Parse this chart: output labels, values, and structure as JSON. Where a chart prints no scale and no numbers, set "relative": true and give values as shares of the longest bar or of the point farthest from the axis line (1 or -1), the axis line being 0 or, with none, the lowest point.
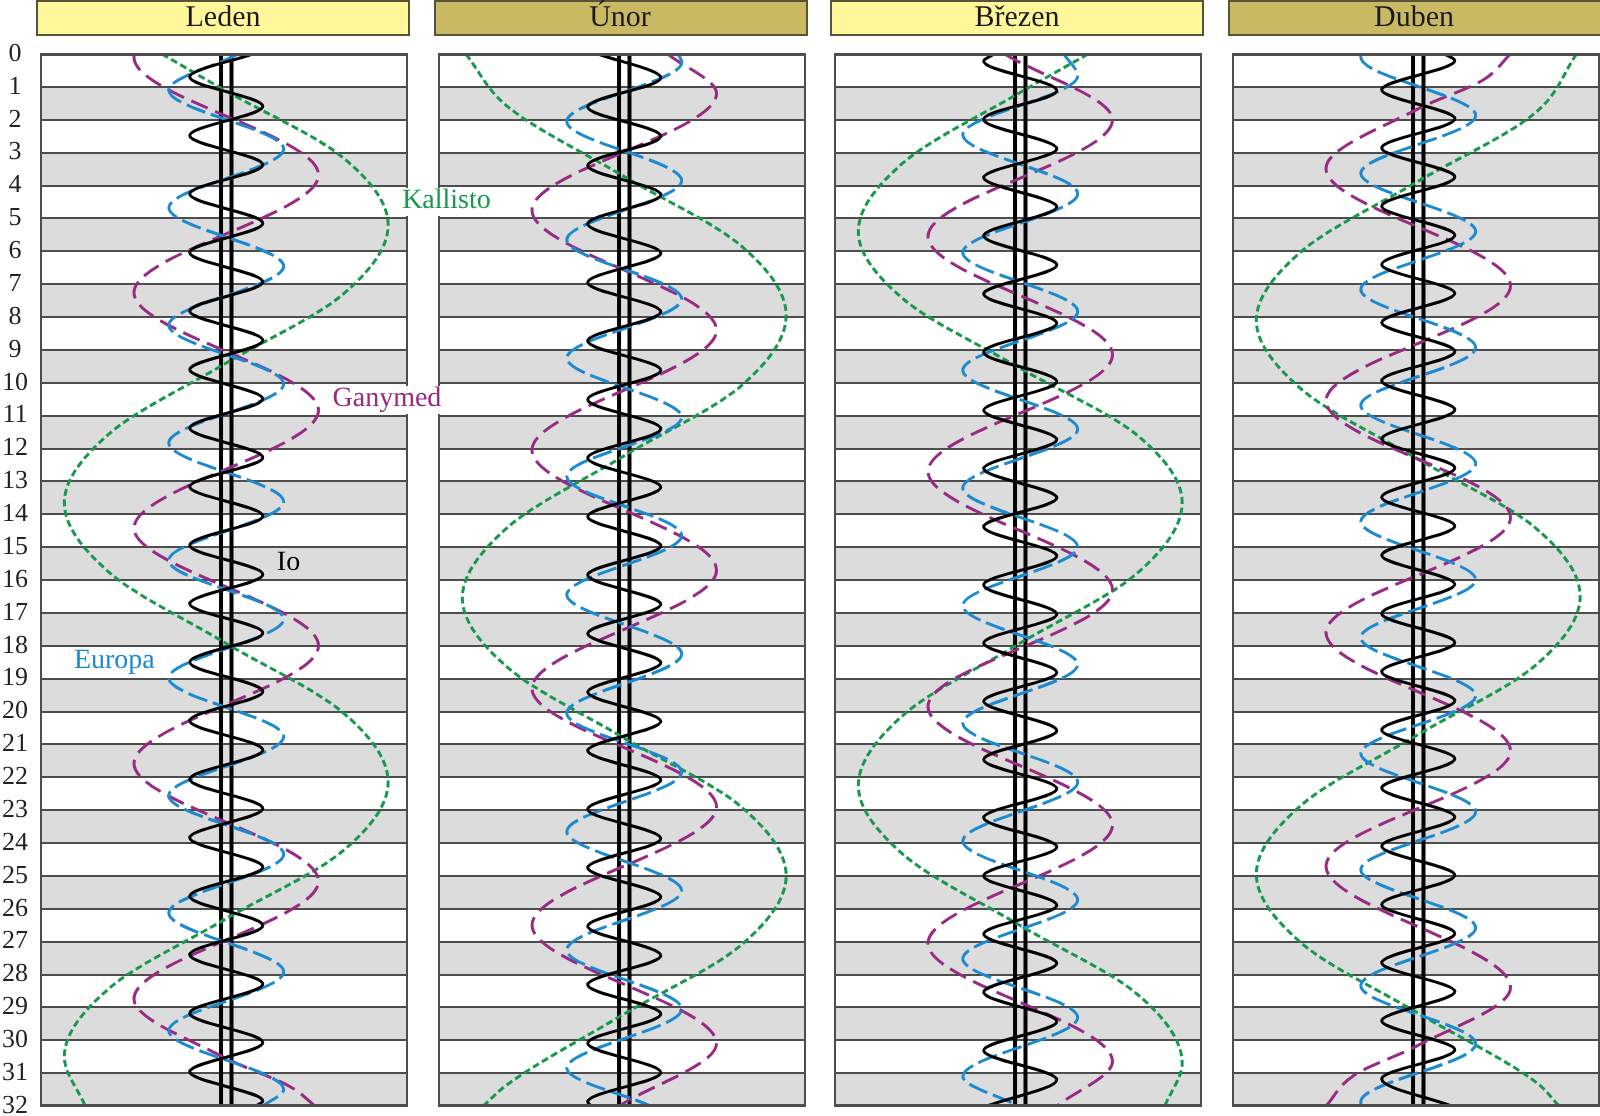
{
  "chart_data": [
    {
      "type": "line",
      "title": "Leden",
      "orientation": "horizontal",
      "relative": true,
      "ylim": [
        32,
        0
      ],
      "yticks": [
        0,
        1,
        2,
        3,
        4,
        5,
        6,
        7,
        8,
        9,
        10,
        11,
        12,
        13,
        14,
        15,
        16,
        17,
        18,
        19,
        20,
        21,
        22,
        23,
        24,
        25,
        26,
        27,
        28,
        29,
        30,
        31,
        32
      ],
      "tick_labels": "y",
      "grid": "y",
      "marker": "none",
      "bands": [
        {
          "axis": "y",
          "from": 1,
          "to": 2,
          "color": "#dcdcdc"
        },
        {
          "axis": "y",
          "from": 3,
          "to": 4,
          "color": "#dcdcdc"
        },
        {
          "axis": "y",
          "from": 5,
          "to": 6,
          "color": "#dcdcdc"
        },
        {
          "axis": "y",
          "from": 7,
          "to": 8,
          "color": "#dcdcdc"
        },
        {
          "axis": "y",
          "from": 9,
          "to": 10,
          "color": "#dcdcdc"
        },
        {
          "axis": "y",
          "from": 11,
          "to": 12,
          "color": "#dcdcdc"
        },
        {
          "axis": "y",
          "from": 13,
          "to": 14,
          "color": "#dcdcdc"
        },
        {
          "axis": "y",
          "from": 15,
          "to": 16,
          "color": "#dcdcdc"
        },
        {
          "axis": "y",
          "from": 17,
          "to": 18,
          "color": "#dcdcdc"
        },
        {
          "axis": "y",
          "from": 19,
          "to": 20,
          "color": "#dcdcdc"
        },
        {
          "axis": "y",
          "from": 21,
          "to": 22,
          "color": "#dcdcdc"
        },
        {
          "axis": "y",
          "from": 23,
          "to": 24,
          "color": "#dcdcdc"
        },
        {
          "axis": "y",
          "from": 25,
          "to": 26,
          "color": "#dcdcdc"
        },
        {
          "axis": "y",
          "from": 27,
          "to": 28,
          "color": "#dcdcdc"
        },
        {
          "axis": "y",
          "from": 29,
          "to": 30,
          "color": "#dcdcdc"
        },
        {
          "axis": "y",
          "from": 31,
          "to": 32,
          "color": "#dcdcdc"
        }
      ],
      "ref_lines": [
        {
          "axis": "x",
          "value": 0.52,
          "color": "#000000"
        },
        {
          "axis": "x",
          "value": 0.55,
          "color": "#000000"
        }
      ],
      "series": [
        {
          "name": "Io",
          "color": "#000000",
          "line_style": "solid",
          "x": [
            0,
            0.7,
            1.59,
            2.48,
            3.37,
            4.26,
            5.15,
            6.04,
            6.93,
            7.82,
            8.71,
            9.6,
            10.49,
            11.38,
            12.27,
            13.16,
            14.05,
            14.94,
            15.83,
            16.72,
            17.61,
            18.5,
            19.39,
            20.28,
            21.17,
            22.06,
            22.95,
            23.84,
            24.73,
            25.62,
            26.51,
            27.4,
            28.29,
            29.18,
            30.07,
            30.96,
            31.85,
            32
          ],
          "values": [
            0.61,
            0.43,
            0.64,
            0.43,
            0.64,
            0.43,
            0.64,
            0.43,
            0.64,
            0.43,
            0.64,
            0.43,
            0.64,
            0.43,
            0.64,
            0.43,
            0.64,
            0.43,
            0.64,
            0.43,
            0.64,
            0.43,
            0.64,
            0.43,
            0.64,
            0.43,
            0.64,
            0.43,
            0.64,
            0.43,
            0.64,
            0.43,
            0.64,
            0.43,
            0.64,
            0.43,
            0.64,
            0.62
          ]
        },
        {
          "name": "Europa",
          "color": "#1b8ad0",
          "line_style": "dashed",
          "x": [
            0,
            1.1,
            2.89,
            4.68,
            6.46,
            8.25,
            10.04,
            11.83,
            13.62,
            15.4,
            17.19,
            18.98,
            20.77,
            22.56,
            24.34,
            26.13,
            27.92,
            29.71,
            31.5,
            32
          ],
          "values": [
            0.57,
            0.37,
            0.7,
            0.37,
            0.7,
            0.37,
            0.7,
            0.37,
            0.7,
            0.37,
            0.7,
            0.37,
            0.7,
            0.37,
            0.7,
            0.37,
            0.7,
            0.37,
            0.7,
            0.64
          ]
        },
        {
          "name": "Ganymed",
          "color": "#982a84",
          "line_style": "dashed",
          "x": [
            0,
            0.1,
            3.68,
            7.26,
            10.84,
            14.42,
            18,
            21.58,
            25.16,
            28.74,
            30.53,
            31.42,
            32
          ],
          "values": [
            0.27,
            0.27,
            0.8,
            0.27,
            0.8,
            0.27,
            0.8,
            0.27,
            0.8,
            0.27,
            0.53,
            0.72,
            0.79
          ]
        },
        {
          "name": "Kallisto",
          "color": "#17994b",
          "line_style": "dashed",
          "x": [
            0,
            1.1,
            3.15,
            5.2,
            7.31,
            9.43,
            11.54,
            13.65,
            15.78,
            17.9,
            20.03,
            22.15,
            24.24,
            26.33,
            28.41,
            30.5,
            32
          ],
          "values": [
            0.35,
            0.53,
            0.87,
            1,
            0.87,
            0.53,
            0.2,
            0.07,
            0.2,
            0.53,
            0.87,
            1,
            0.87,
            0.53,
            0.2,
            0.07,
            0.13
          ]
        }
      ]
    },
    {
      "type": "line",
      "title": "Únor",
      "orientation": "horizontal",
      "relative": true,
      "ylim": [
        32,
        0
      ],
      "yticks": [
        0,
        1,
        2,
        3,
        4,
        5,
        6,
        7,
        8,
        9,
        10,
        11,
        12,
        13,
        14,
        15,
        16,
        17,
        18,
        19,
        20,
        21,
        22,
        23,
        24,
        25,
        26,
        27,
        28,
        29,
        30,
        31,
        32
      ],
      "tick_labels": false,
      "grid": "y",
      "marker": "none",
      "bands": [
        {
          "axis": "y",
          "from": 1,
          "to": 2,
          "color": "#dcdcdc"
        },
        {
          "axis": "y",
          "from": 3,
          "to": 4,
          "color": "#dcdcdc"
        },
        {
          "axis": "y",
          "from": 5,
          "to": 6,
          "color": "#dcdcdc"
        },
        {
          "axis": "y",
          "from": 7,
          "to": 8,
          "color": "#dcdcdc"
        },
        {
          "axis": "y",
          "from": 9,
          "to": 10,
          "color": "#dcdcdc"
        },
        {
          "axis": "y",
          "from": 11,
          "to": 12,
          "color": "#dcdcdc"
        },
        {
          "axis": "y",
          "from": 13,
          "to": 14,
          "color": "#dcdcdc"
        },
        {
          "axis": "y",
          "from": 15,
          "to": 16,
          "color": "#dcdcdc"
        },
        {
          "axis": "y",
          "from": 17,
          "to": 18,
          "color": "#dcdcdc"
        },
        {
          "axis": "y",
          "from": 19,
          "to": 20,
          "color": "#dcdcdc"
        },
        {
          "axis": "y",
          "from": 21,
          "to": 22,
          "color": "#dcdcdc"
        },
        {
          "axis": "y",
          "from": 23,
          "to": 24,
          "color": "#dcdcdc"
        },
        {
          "axis": "y",
          "from": 25,
          "to": 26,
          "color": "#dcdcdc"
        },
        {
          "axis": "y",
          "from": 27,
          "to": 28,
          "color": "#dcdcdc"
        },
        {
          "axis": "y",
          "from": 29,
          "to": 30,
          "color": "#dcdcdc"
        },
        {
          "axis": "y",
          "from": 31,
          "to": 32,
          "color": "#dcdcdc"
        }
      ],
      "ref_lines": [
        {
          "axis": "x",
          "value": 0.52,
          "color": "#000000"
        },
        {
          "axis": "x",
          "value": 0.55,
          "color": "#000000"
        }
      ],
      "series": [
        {
          "color": "#000000",
          "line_style": "solid",
          "x": [
            0,
            0.72,
            1.61,
            2.5,
            3.39,
            4.28,
            5.17,
            6.06,
            6.95,
            7.84,
            8.73,
            9.62,
            10.51,
            11.4,
            12.29,
            13.18,
            14.07,
            14.96,
            15.85,
            16.74,
            17.63,
            18.52,
            19.41,
            20.3,
            21.19,
            22.08,
            22.97,
            23.86,
            24.75,
            25.64,
            26.53,
            27.42,
            28.31,
            29.2,
            30.09,
            30.98,
            31.87,
            32
          ],
          "values": [
            0.46,
            0.64,
            0.43,
            0.64,
            0.43,
            0.64,
            0.43,
            0.64,
            0.43,
            0.64,
            0.43,
            0.64,
            0.43,
            0.64,
            0.43,
            0.64,
            0.43,
            0.64,
            0.43,
            0.64,
            0.43,
            0.64,
            0.43,
            0.64,
            0.43,
            0.64,
            0.43,
            0.64,
            0.43,
            0.64,
            0.43,
            0.64,
            0.43,
            0.64,
            0.43,
            0.64,
            0.43,
            0.44
          ]
        },
        {
          "color": "#1b8ad0",
          "line_style": "dashed",
          "x": [
            0,
            0.25,
            2.05,
            3.85,
            5.65,
            7.45,
            9.25,
            11.05,
            12.85,
            14.65,
            16.45,
            18.25,
            20.05,
            21.85,
            23.65,
            25.45,
            27.25,
            29.05,
            30.85,
            32
          ],
          "values": [
            0.69,
            0.7,
            0.37,
            0.7,
            0.37,
            0.7,
            0.37,
            0.7,
            0.37,
            0.7,
            0.37,
            0.7,
            0.37,
            0.7,
            0.37,
            0.7,
            0.37,
            0.7,
            0.37,
            0.61
          ]
        },
        {
          "color": "#982a84",
          "line_style": "dashed",
          "x": [
            0,
            1.2,
            4.75,
            8.4,
            12.05,
            15.7,
            19.3,
            22.9,
            26.5,
            30.1,
            32
          ],
          "values": [
            0.66,
            0.8,
            0.27,
            0.8,
            0.27,
            0.8,
            0.27,
            0.8,
            0.27,
            0.8,
            0.52
          ]
        },
        {
          "color": "#17994b",
          "line_style": "dashed",
          "x": [
            0,
            1.6,
            3.7,
            5.83,
            7.95,
            10.1,
            12.25,
            14.4,
            16.55,
            18.66,
            20.78,
            22.89,
            25,
            27.11,
            29.23,
            31.34,
            32
          ],
          "values": [
            0.08,
            0.2,
            0.53,
            0.87,
            1,
            0.87,
            0.53,
            0.2,
            0.07,
            0.2,
            0.53,
            0.87,
            1,
            0.87,
            0.53,
            0.2,
            0.13
          ]
        }
      ]
    },
    {
      "type": "line",
      "title": "Březen",
      "orientation": "horizontal",
      "relative": true,
      "ylim": [
        32,
        0
      ],
      "yticks": [
        0,
        1,
        2,
        3,
        4,
        5,
        6,
        7,
        8,
        9,
        10,
        11,
        12,
        13,
        14,
        15,
        16,
        17,
        18,
        19,
        20,
        21,
        22,
        23,
        24,
        25,
        26,
        27,
        28,
        29,
        30,
        31,
        32
      ],
      "tick_labels": false,
      "grid": "y",
      "marker": "none",
      "bands": [
        {
          "axis": "y",
          "from": 1,
          "to": 2,
          "color": "#dcdcdc"
        },
        {
          "axis": "y",
          "from": 3,
          "to": 4,
          "color": "#dcdcdc"
        },
        {
          "axis": "y",
          "from": 5,
          "to": 6,
          "color": "#dcdcdc"
        },
        {
          "axis": "y",
          "from": 7,
          "to": 8,
          "color": "#dcdcdc"
        },
        {
          "axis": "y",
          "from": 9,
          "to": 10,
          "color": "#dcdcdc"
        },
        {
          "axis": "y",
          "from": 11,
          "to": 12,
          "color": "#dcdcdc"
        },
        {
          "axis": "y",
          "from": 13,
          "to": 14,
          "color": "#dcdcdc"
        },
        {
          "axis": "y",
          "from": 15,
          "to": 16,
          "color": "#dcdcdc"
        },
        {
          "axis": "y",
          "from": 17,
          "to": 18,
          "color": "#dcdcdc"
        },
        {
          "axis": "y",
          "from": 19,
          "to": 20,
          "color": "#dcdcdc"
        },
        {
          "axis": "y",
          "from": 21,
          "to": 22,
          "color": "#dcdcdc"
        },
        {
          "axis": "y",
          "from": 23,
          "to": 24,
          "color": "#dcdcdc"
        },
        {
          "axis": "y",
          "from": 25,
          "to": 26,
          "color": "#dcdcdc"
        },
        {
          "axis": "y",
          "from": 27,
          "to": 28,
          "color": "#dcdcdc"
        },
        {
          "axis": "y",
          "from": 29,
          "to": 30,
          "color": "#dcdcdc"
        },
        {
          "axis": "y",
          "from": 31,
          "to": 32,
          "color": "#dcdcdc"
        }
      ],
      "ref_lines": [
        {
          "axis": "x",
          "value": 0.52,
          "color": "#000000"
        },
        {
          "axis": "x",
          "value": 0.55,
          "color": "#000000"
        }
      ],
      "series": [
        {
          "color": "#000000",
          "line_style": "solid",
          "x": [
            0,
            0.22,
            1.11,
            1.99,
            2.88,
            3.76,
            4.65,
            5.53,
            6.42,
            7.3,
            8.19,
            9.07,
            9.96,
            10.84,
            11.73,
            12.61,
            13.5,
            14.38,
            15.27,
            16.15,
            17.04,
            17.92,
            18.81,
            19.69,
            20.58,
            21.46,
            22.35,
            23.23,
            24.12,
            25,
            25.89,
            26.77,
            27.66,
            28.54,
            29.43,
            30.31,
            31.2,
            32
          ],
          "values": [
            0.46,
            0.43,
            0.64,
            0.43,
            0.64,
            0.43,
            0.64,
            0.43,
            0.64,
            0.43,
            0.64,
            0.43,
            0.64,
            0.43,
            0.64,
            0.43,
            0.64,
            0.43,
            0.64,
            0.43,
            0.64,
            0.43,
            0.64,
            0.43,
            0.64,
            0.43,
            0.64,
            0.43,
            0.64,
            0.43,
            0.64,
            0.43,
            0.64,
            0.43,
            0.64,
            0.43,
            0.64,
            0.44
          ]
        },
        {
          "color": "#1b8ad0",
          "line_style": "dashed",
          "x": [
            0,
            0.67,
            2.46,
            4.25,
            6.04,
            7.83,
            9.62,
            11.41,
            13.2,
            14.99,
            16.78,
            18.57,
            20.36,
            22.15,
            23.94,
            25.73,
            27.52,
            29.31,
            31.1,
            32
          ],
          "values": [
            0.66,
            0.7,
            0.37,
            0.7,
            0.37,
            0.7,
            0.37,
            0.7,
            0.37,
            0.7,
            0.37,
            0.7,
            0.37,
            0.7,
            0.37,
            0.7,
            0.37,
            0.7,
            0.37,
            0.53
          ]
        },
        {
          "color": "#982a84",
          "line_style": "dashed",
          "x": [
            0,
            2,
            5.55,
            9.15,
            12.7,
            16.3,
            19.85,
            23.45,
            27.05,
            30.65,
            32
          ],
          "values": [
            0.49,
            0.8,
            0.27,
            0.8,
            0.27,
            0.8,
            0.27,
            0.8,
            0.27,
            0.8,
            0.64
          ]
        },
        {
          "color": "#17994b",
          "line_style": "dashed",
          "x": [
            0,
            1.2,
            3.3,
            5.4,
            7.46,
            9.53,
            11.59,
            13.65,
            15.8,
            17.95,
            20.1,
            22.25,
            24.36,
            26.48,
            28.59,
            30.7,
            32
          ],
          "values": [
            0.73,
            0.53,
            0.2,
            0.07,
            0.2,
            0.53,
            0.87,
            1,
            0.87,
            0.53,
            0.2,
            0.07,
            0.2,
            0.53,
            0.87,
            1,
            0.95
          ]
        }
      ]
    },
    {
      "type": "line",
      "title": "Duben",
      "orientation": "horizontal",
      "relative": true,
      "ylim": [
        32,
        0
      ],
      "yticks": [
        0,
        1,
        2,
        3,
        4,
        5,
        6,
        7,
        8,
        9,
        10,
        11,
        12,
        13,
        14,
        15,
        16,
        17,
        18,
        19,
        20,
        21,
        22,
        23,
        24,
        25,
        26,
        27,
        28,
        29,
        30,
        31,
        32
      ],
      "tick_labels": false,
      "grid": "y",
      "marker": "none",
      "bands": [
        {
          "axis": "y",
          "from": 1,
          "to": 2,
          "color": "#dcdcdc"
        },
        {
          "axis": "y",
          "from": 3,
          "to": 4,
          "color": "#dcdcdc"
        },
        {
          "axis": "y",
          "from": 5,
          "to": 6,
          "color": "#dcdcdc"
        },
        {
          "axis": "y",
          "from": 7,
          "to": 8,
          "color": "#dcdcdc"
        },
        {
          "axis": "y",
          "from": 9,
          "to": 10,
          "color": "#dcdcdc"
        },
        {
          "axis": "y",
          "from": 11,
          "to": 12,
          "color": "#dcdcdc"
        },
        {
          "axis": "y",
          "from": 13,
          "to": 14,
          "color": "#dcdcdc"
        },
        {
          "axis": "y",
          "from": 15,
          "to": 16,
          "color": "#dcdcdc"
        },
        {
          "axis": "y",
          "from": 17,
          "to": 18,
          "color": "#dcdcdc"
        },
        {
          "axis": "y",
          "from": 19,
          "to": 20,
          "color": "#dcdcdc"
        },
        {
          "axis": "y",
          "from": 21,
          "to": 22,
          "color": "#dcdcdc"
        },
        {
          "axis": "y",
          "from": 23,
          "to": 24,
          "color": "#dcdcdc"
        },
        {
          "axis": "y",
          "from": 25,
          "to": 26,
          "color": "#dcdcdc"
        },
        {
          "axis": "y",
          "from": 27,
          "to": 28,
          "color": "#dcdcdc"
        },
        {
          "axis": "y",
          "from": 29,
          "to": 30,
          "color": "#dcdcdc"
        },
        {
          "axis": "y",
          "from": 31,
          "to": 32,
          "color": "#dcdcdc"
        }
      ],
      "ref_lines": [
        {
          "axis": "x",
          "value": 0.52,
          "color": "#000000"
        },
        {
          "axis": "x",
          "value": 0.55,
          "color": "#000000"
        }
      ],
      "series": [
        {
          "color": "#000000",
          "line_style": "solid",
          "x": [
            0,
            0.2,
            1.09,
            1.97,
            2.86,
            3.74,
            4.63,
            5.51,
            6.4,
            7.28,
            8.17,
            9.05,
            9.94,
            10.82,
            11.71,
            12.59,
            13.48,
            14.36,
            15.25,
            16.13,
            17.02,
            17.9,
            18.79,
            19.67,
            20.56,
            21.44,
            22.33,
            23.21,
            24.1,
            24.98,
            25.87,
            26.75,
            27.64,
            28.52,
            29.41,
            30.29,
            31.18,
            32
          ],
          "values": [
            0.61,
            0.64,
            0.43,
            0.64,
            0.43,
            0.64,
            0.43,
            0.64,
            0.43,
            0.64,
            0.43,
            0.64,
            0.43,
            0.64,
            0.43,
            0.64,
            0.43,
            0.64,
            0.43,
            0.64,
            0.43,
            0.64,
            0.43,
            0.64,
            0.43,
            0.64,
            0.43,
            0.64,
            0.43,
            0.64,
            0.43,
            0.64,
            0.43,
            0.64,
            0.43,
            0.64,
            0.43,
            0.63
          ]
        },
        {
          "color": "#1b8ad0",
          "line_style": "dashed",
          "x": [
            0,
            0.1,
            1.87,
            3.63,
            5.4,
            7.16,
            8.93,
            10.69,
            12.46,
            14.22,
            15.99,
            17.75,
            19.52,
            21.28,
            23.05,
            24.81,
            26.58,
            28.34,
            30.11,
            31.87,
            32
          ],
          "values": [
            0.37,
            0.37,
            0.7,
            0.37,
            0.7,
            0.37,
            0.7,
            0.37,
            0.7,
            0.37,
            0.7,
            0.37,
            0.7,
            0.37,
            0.7,
            0.37,
            0.7,
            0.37,
            0.7,
            0.37,
            0.37
          ]
        },
        {
          "color": "#982a84",
          "line_style": "dashed",
          "x": [
            0,
            0.8,
            1.69,
            3.48,
            7.05,
            10.55,
            14.1,
            17.6,
            21.2,
            24.7,
            28.4,
            30.18,
            31.07,
            32
          ],
          "values": [
            0.8,
            0.72,
            0.53,
            0.27,
            0.8,
            0.27,
            0.8,
            0.27,
            0.8,
            0.27,
            0.8,
            0.53,
            0.35,
            0.27
          ]
        },
        {
          "color": "#17994b",
          "line_style": "dashed",
          "x": [
            0,
            1.8,
            3.9,
            6,
            8.1,
            10.2,
            12.3,
            14.4,
            16.5,
            18.61,
            20.73,
            22.84,
            24.95,
            27.05,
            29.15,
            31.25,
            32
          ],
          "values": [
            0.99,
            0.87,
            0.53,
            0.2,
            0.07,
            0.2,
            0.53,
            0.87,
            1,
            0.87,
            0.53,
            0.2,
            0.07,
            0.2,
            0.53,
            0.87,
            0.94
          ]
        }
      ]
    }
  ]
}
